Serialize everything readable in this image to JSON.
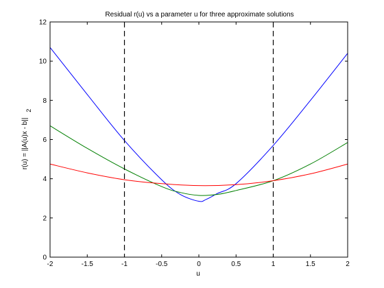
{
  "chart_data": {
    "type": "line",
    "title": "Residual r(u) vs a parameter u for three approximate solutions",
    "xlabel": "u",
    "ylabel": "r(u) = ||A(u)x - b||",
    "ylabel_subscript": "2",
    "xlim": [
      -2,
      2
    ],
    "ylim": [
      0,
      12
    ],
    "xticks": [
      -2,
      -1.5,
      -1,
      -0.5,
      0,
      0.5,
      1,
      1.5,
      2
    ],
    "xtick_labels": [
      "-2",
      "-1.5",
      "-1",
      "-0.5",
      "0",
      "0.5",
      "1",
      "1.5",
      "2"
    ],
    "yticks": [
      0,
      2,
      4,
      6,
      8,
      10,
      12
    ],
    "ytick_labels": [
      "0",
      "2",
      "4",
      "6",
      "8",
      "10",
      "12"
    ],
    "grid": false,
    "legend": null,
    "vertical_lines": [
      {
        "x": -1,
        "style": "dashed",
        "color": "#000000"
      },
      {
        "x": 1,
        "style": "dashed",
        "color": "#000000"
      }
    ],
    "series": [
      {
        "color": "#0000ff",
        "x": [
          -2,
          -1.5,
          -1,
          -0.5,
          -0.25,
          0,
          0.1,
          0.25,
          0.5,
          1,
          1.5,
          2
        ],
        "y": [
          10.7,
          8.3,
          5.95,
          3.95,
          3.2,
          2.85,
          2.95,
          3.25,
          3.75,
          5.7,
          8.0,
          10.4
        ]
      },
      {
        "color": "#007f00",
        "x": [
          -2,
          -1.5,
          -1,
          -0.5,
          -0.25,
          0,
          0.25,
          0.5,
          1,
          1.5,
          2
        ],
        "y": [
          6.7,
          5.55,
          4.5,
          3.6,
          3.3,
          3.15,
          3.2,
          3.4,
          3.9,
          4.75,
          5.85
        ]
      },
      {
        "color": "#ff0000",
        "x": [
          -2,
          -1.5,
          -1,
          -0.5,
          0,
          0.5,
          1,
          1.5,
          2
        ],
        "y": [
          4.75,
          4.3,
          3.95,
          3.75,
          3.65,
          3.7,
          3.9,
          4.25,
          4.75
        ]
      }
    ]
  }
}
